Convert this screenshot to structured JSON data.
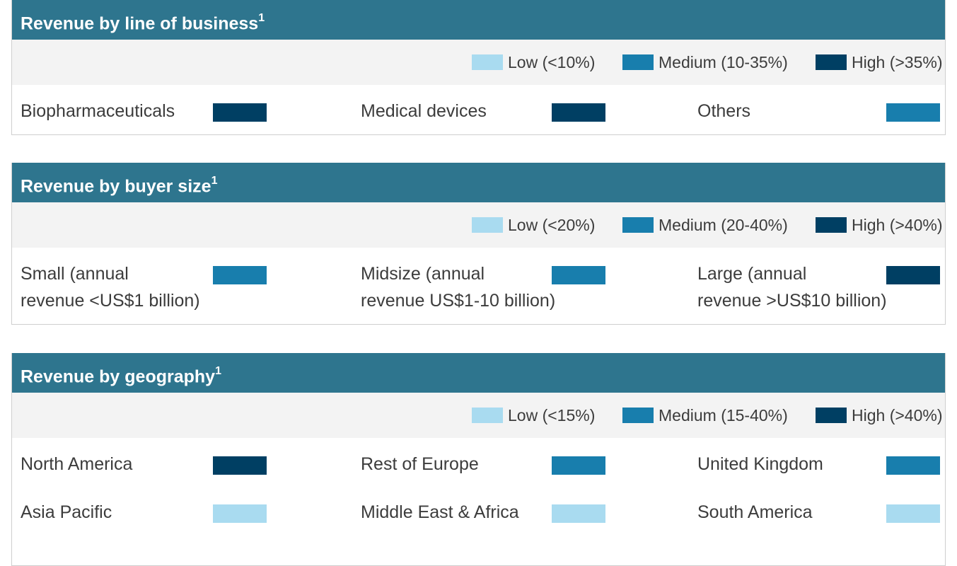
{
  "colors": {
    "low": "#a9dbf0",
    "medium": "#187ead",
    "high": "#003f63",
    "header": "#2e758e"
  },
  "panels": [
    {
      "title": "Revenue by line of business",
      "footnote": "1",
      "legend": {
        "low": "Low (<10%)",
        "medium": "Medium (10-35%)",
        "high": "High (>35%)"
      },
      "items": [
        {
          "lines": [
            "Biopharmaceuticals"
          ],
          "level": "high"
        },
        {
          "lines": [
            "Medical devices"
          ],
          "level": "high"
        },
        {
          "lines": [
            "Others"
          ],
          "level": "medium"
        }
      ]
    },
    {
      "title": "Revenue by buyer size",
      "footnote": "1",
      "legend": {
        "low": "Low (<20%)",
        "medium": "Medium (20-40%)",
        "high": "High (>40%)"
      },
      "items": [
        {
          "lines": [
            "Small (annual",
            "revenue <US$1 billion)"
          ],
          "level": "medium"
        },
        {
          "lines": [
            "Midsize (annual",
            "revenue US$1-10 billion)"
          ],
          "level": "medium"
        },
        {
          "lines": [
            "Large (annual",
            "revenue >US$10 billion)"
          ],
          "level": "high"
        }
      ]
    },
    {
      "title": "Revenue by geography",
      "footnote": "1",
      "legend": {
        "low": "Low (<15%)",
        "medium": "Medium (15-40%)",
        "high": "High (>40%)"
      },
      "items": [
        {
          "lines": [
            "North America"
          ],
          "level": "high"
        },
        {
          "lines": [
            "Rest of Europe"
          ],
          "level": "medium"
        },
        {
          "lines": [
            "United Kingdom"
          ],
          "level": "medium"
        },
        {
          "lines": [
            "Asia Pacific"
          ],
          "level": "low"
        },
        {
          "lines": [
            "Middle East & Africa"
          ],
          "level": "low"
        },
        {
          "lines": [
            "South America"
          ],
          "level": "low"
        }
      ]
    }
  ]
}
